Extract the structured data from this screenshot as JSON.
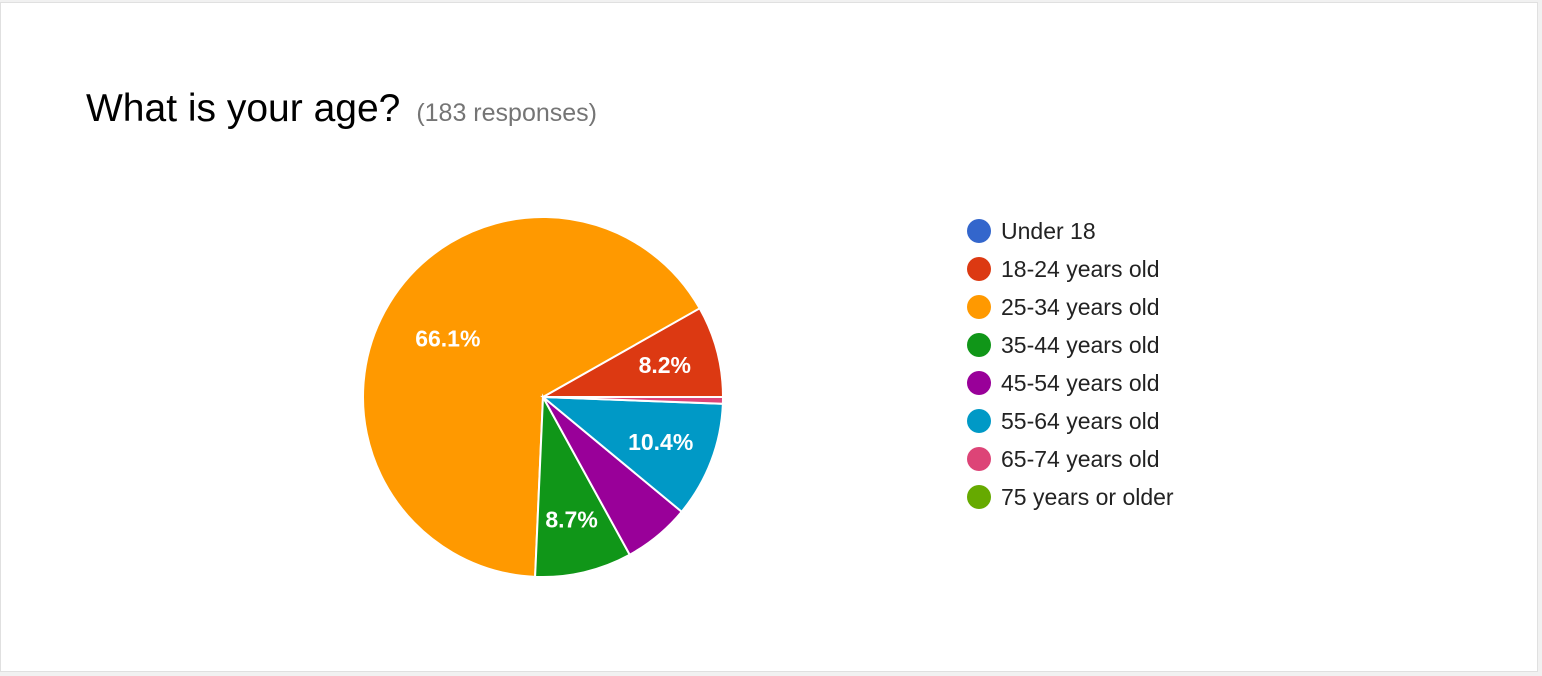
{
  "header": {
    "title": "What is your age?",
    "response_count": "(183 responses)"
  },
  "chart_data": {
    "type": "pie",
    "legend_position": "right",
    "slices": [
      {
        "label": "Under 18",
        "value": 0.0,
        "color": "#3366cc",
        "display": ""
      },
      {
        "label": "18-24 years old",
        "value": 8.2,
        "color": "#dc3912",
        "display": "8.2%"
      },
      {
        "label": "25-34 years old",
        "value": 66.1,
        "color": "#ff9900",
        "display": "66.1%"
      },
      {
        "label": "35-44 years old",
        "value": 8.7,
        "color": "#109618",
        "display": "8.7%"
      },
      {
        "label": "45-54 years old",
        "value": 6.0,
        "color": "#990099",
        "display": ""
      },
      {
        "label": "55-64 years old",
        "value": 10.4,
        "color": "#0099c6",
        "display": "10.4%"
      },
      {
        "label": "65-74 years old",
        "value": 0.6,
        "color": "#dd4477",
        "display": ""
      },
      {
        "label": "75 years or older",
        "value": 0.0,
        "color": "#66aa00",
        "display": ""
      }
    ]
  }
}
